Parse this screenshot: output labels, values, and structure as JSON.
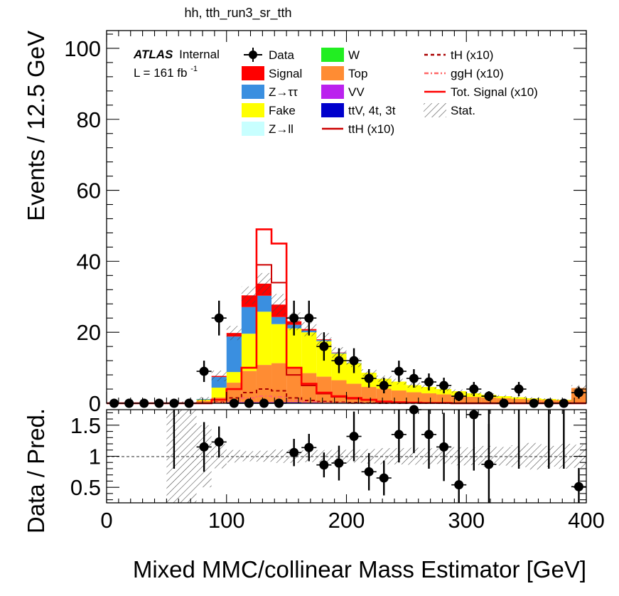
{
  "title": "hh, tth_run3_sr_tth",
  "atlas_label": {
    "bold": "ATLAS",
    "rest": "Internal"
  },
  "lumi_label": {
    "prefix": "L = 161 fb",
    "sup": "-1"
  },
  "legend": [
    {
      "key": "data",
      "label": "Data",
      "kind": "marker",
      "color": "#000000"
    },
    {
      "key": "signal",
      "label": "Signal",
      "kind": "box",
      "color": "#ff0000"
    },
    {
      "key": "ztautau",
      "label": "Z→ττ",
      "kind": "box",
      "color": "#3a8fe0"
    },
    {
      "key": "fake",
      "label": "Fake",
      "kind": "box",
      "color": "#ffff00"
    },
    {
      "key": "zll",
      "label": "Z→ll",
      "kind": "box",
      "color": "#c8ffff"
    },
    {
      "key": "w",
      "label": "W",
      "kind": "box",
      "color": "#22ee22"
    },
    {
      "key": "top",
      "label": "Top",
      "kind": "box",
      "color": "#ff8c33"
    },
    {
      "key": "vv",
      "label": "VV",
      "kind": "box",
      "color": "#bb22ee"
    },
    {
      "key": "ttv",
      "label": "ttV, 4t, 3t",
      "kind": "box",
      "color": "#0000cc"
    },
    {
      "key": "tth",
      "label": "ttH (x10)",
      "kind": "line",
      "color": "#cc0000",
      "dash": ""
    },
    {
      "key": "th",
      "label": "tH (x10)",
      "kind": "line",
      "color": "#aa0000",
      "dash": "5,4"
    },
    {
      "key": "ggh",
      "label": "ggH (x10)",
      "kind": "line",
      "color": "#ff6666",
      "dash": "6,3,2,3"
    },
    {
      "key": "totsig",
      "label": "Tot. Signal (x10)",
      "kind": "line",
      "color": "#ff0000",
      "dash": ""
    },
    {
      "key": "stat",
      "label": "Stat.",
      "kind": "hatch",
      "color": "#555555"
    }
  ],
  "chart_data": [
    {
      "type": "bar",
      "stacked": true,
      "ylabel": "Events / 12.5 GeV",
      "xlim": [
        0,
        400
      ],
      "ylim": [
        0,
        105
      ],
      "yticks": [
        0,
        20,
        40,
        60,
        80,
        100
      ],
      "xtick_labels": [
        "0",
        "100",
        "200",
        "300",
        "400"
      ],
      "ytick_labels": [
        "0",
        "20",
        "40",
        "60",
        "80",
        "100"
      ],
      "bin_edges": [
        0,
        12.5,
        25,
        37.5,
        50,
        62.5,
        75,
        87.5,
        100,
        112.5,
        125,
        137.5,
        150,
        162.5,
        175,
        187.5,
        200,
        212.5,
        225,
        237.5,
        250,
        262.5,
        275,
        287.5,
        300,
        312.5,
        325,
        337.5,
        350,
        362.5,
        375,
        387.5,
        400
      ],
      "series": [
        {
          "name": "ttV, 4t, 3t",
          "values": [
            0,
            0,
            0,
            0,
            0,
            0,
            0.1,
            0.1,
            0.2,
            0.2,
            0.2,
            0.2,
            0.2,
            0.1,
            0.1,
            0.1,
            0.1,
            0.1,
            0.1,
            0.1,
            0.1,
            0.1,
            0.1,
            0.1,
            0,
            0,
            0,
            0,
            0,
            0,
            0,
            0.1
          ]
        },
        {
          "name": "VV",
          "values": [
            0,
            0,
            0,
            0,
            0,
            0,
            0,
            0,
            0.1,
            0.1,
            0.1,
            0.1,
            0.1,
            0.1,
            0.1,
            0.1,
            0.1,
            0,
            0,
            0,
            0,
            0,
            0,
            0,
            0,
            0,
            0,
            0,
            0,
            0,
            0,
            0
          ]
        },
        {
          "name": "Top",
          "values": [
            0,
            0,
            0,
            0,
            0,
            0.2,
            0.6,
            1.5,
            5.5,
            8.8,
            10.5,
            11,
            9.5,
            8.3,
            7.3,
            6.3,
            5.3,
            4.5,
            4,
            3.5,
            3,
            2.7,
            2.4,
            2,
            1.8,
            1.6,
            1.4,
            1.2,
            1,
            0.9,
            0.8,
            4.2
          ]
        },
        {
          "name": "W",
          "values": [
            0,
            0,
            0,
            0,
            0,
            0,
            0,
            0,
            0,
            0,
            0,
            0,
            0,
            0,
            0,
            0,
            0,
            0,
            0,
            0,
            0,
            0,
            0,
            0,
            0,
            0,
            0,
            0,
            0,
            0,
            0,
            0
          ]
        },
        {
          "name": "Z→ll",
          "values": [
            0,
            0,
            0,
            0,
            0,
            0,
            0,
            0,
            0,
            0,
            0,
            0,
            0,
            0,
            0,
            0,
            0,
            0,
            0,
            0,
            0,
            0,
            0,
            0,
            0,
            0,
            0,
            0,
            0,
            0,
            0,
            0
          ]
        },
        {
          "name": "Fake",
          "values": [
            0,
            0,
            0,
            0,
            0,
            0,
            0.3,
            2.8,
            3,
            10.5,
            15,
            11,
            11.3,
            11.5,
            10,
            7.5,
            5.8,
            4,
            2.8,
            2.5,
            2,
            1.8,
            1.5,
            1.3,
            1,
            0.8,
            0.6,
            0.5,
            0.4,
            0.3,
            0.2,
            0
          ]
        },
        {
          "name": "Z→ττ",
          "values": [
            0,
            0,
            0,
            0,
            0,
            0,
            0.2,
            3,
            10,
            7.5,
            4.5,
            2,
            1,
            0.5,
            0.3,
            0.2,
            0.1,
            0,
            0,
            0,
            0,
            0,
            0,
            0,
            0,
            0,
            0,
            0,
            0,
            0,
            0,
            0
          ]
        },
        {
          "name": "Signal",
          "values": [
            0,
            0,
            0,
            0,
            0,
            0,
            0,
            0.3,
            1,
            3.3,
            3.4,
            3.5,
            1,
            0.4,
            0.2,
            0.1,
            0,
            0,
            0,
            0,
            0,
            0,
            0,
            0,
            0,
            0,
            0,
            0,
            0,
            0,
            0,
            0
          ]
        }
      ],
      "line_series": [
        {
          "name": "Tot. Signal (x10)",
          "values": [
            0,
            0,
            0,
            0,
            0,
            0,
            0,
            1,
            4,
            10,
            49,
            45,
            10,
            5.5,
            3,
            2,
            1.5,
            1,
            0.5,
            0.3,
            0.2,
            0.1,
            0.1,
            0,
            0,
            0,
            0,
            0,
            0,
            0,
            0,
            0
          ]
        },
        {
          "name": "ttH (x10)",
          "values": [
            0,
            0,
            0,
            0,
            0,
            0,
            0,
            1,
            4,
            10,
            39,
            34,
            8,
            5,
            2.7,
            1.8,
            1.3,
            0.9,
            0.4,
            0.3,
            0.2,
            0.1,
            0.1,
            0,
            0,
            0,
            0,
            0,
            0,
            0,
            0,
            0
          ]
        },
        {
          "name": "tH (x10)",
          "values": [
            0,
            0,
            0,
            0,
            0,
            0,
            0,
            0.3,
            1.5,
            3,
            4,
            3.5,
            1.5,
            0.8,
            0.5,
            0.3,
            0.2,
            0.1,
            0,
            0,
            0,
            0,
            0,
            0,
            0,
            0,
            0,
            0,
            0,
            0,
            0,
            0
          ]
        },
        {
          "name": "ggH (x10)",
          "values": [
            0,
            0,
            0,
            0,
            0,
            0,
            0,
            0.2,
            0.8,
            1.5,
            2,
            1.8,
            0.8,
            0.4,
            0.2,
            0.1,
            0,
            0,
            0,
            0,
            0,
            0,
            0,
            0,
            0,
            0,
            0,
            0,
            0,
            0,
            0,
            0
          ]
        }
      ],
      "data_points": {
        "name": "Data",
        "x": [
          6.25,
          18.75,
          31.25,
          43.75,
          56.25,
          68.75,
          81.25,
          93.75,
          106.25,
          118.75,
          131.25,
          143.75,
          156.25,
          168.75,
          181.25,
          193.75,
          206.25,
          218.75,
          231.25,
          243.75,
          256.25,
          268.75,
          281.25,
          293.75,
          306.25,
          318.75,
          331.25,
          343.75,
          356.25,
          368.75,
          381.25,
          393.75
        ],
        "y": [
          0,
          0,
          0,
          0,
          0,
          0,
          9,
          24,
          0,
          0,
          0,
          0,
          24,
          24,
          16,
          12,
          12,
          7,
          5,
          9,
          7,
          6,
          5,
          2,
          4,
          2,
          0,
          4,
          0,
          0,
          0,
          3
        ],
        "err": [
          0,
          0,
          0,
          0,
          0,
          0,
          3,
          4.9,
          0,
          0,
          0,
          0,
          4.9,
          4.9,
          4,
          3.5,
          3.5,
          2.6,
          2.2,
          3,
          2.6,
          2.4,
          2.2,
          1.4,
          2,
          1.4,
          0,
          2,
          0,
          0,
          0,
          1.7
        ]
      },
      "stat_unc": [
        0,
        0,
        0,
        0,
        0,
        0.3,
        0.6,
        1.5,
        2,
        2.5,
        3,
        3,
        2.5,
        2,
        1.8,
        1.5,
        1.2,
        1,
        0.9,
        0.8,
        0.7,
        0.6,
        0.5,
        0.5,
        0.4,
        0.4,
        0.3,
        0.3,
        0.3,
        0.2,
        0.2,
        0.8
      ]
    },
    {
      "type": "scatter",
      "ylabel": "Data / Pred.",
      "xlabel": "Mixed MMC/collinear Mass Estimator [GeV]",
      "xlim": [
        0,
        400
      ],
      "ylim": [
        0.25,
        1.75
      ],
      "yticks": [
        0.5,
        1,
        1.5
      ],
      "ytick_labels": [
        "0.5",
        "1",
        "1.5"
      ],
      "ratio_points": {
        "x": [
          81.25,
          93.75,
          156.25,
          168.75,
          181.25,
          193.75,
          206.25,
          218.75,
          231.25,
          243.75,
          256.25,
          268.75,
          281.25,
          293.75,
          306.25,
          318.75,
          393.75
        ],
        "y": [
          1.15,
          1.23,
          1.06,
          1.14,
          0.86,
          0.89,
          1.32,
          0.75,
          0.65,
          1.35,
          1.75,
          1.35,
          1.15,
          0.54,
          1.67,
          0.87,
          0.51
        ],
        "err": [
          0.4,
          0.25,
          0.22,
          0.22,
          0.2,
          0.28,
          0.4,
          0.3,
          0.28,
          0.45,
          0.7,
          0.55,
          0.55,
          0.45,
          0.9,
          0.65,
          0.3
        ]
      },
      "ratio_offscale_up_x": [
        56.25,
        293.75,
        318.75,
        343.75,
        368.75,
        381.25
      ]
    }
  ]
}
